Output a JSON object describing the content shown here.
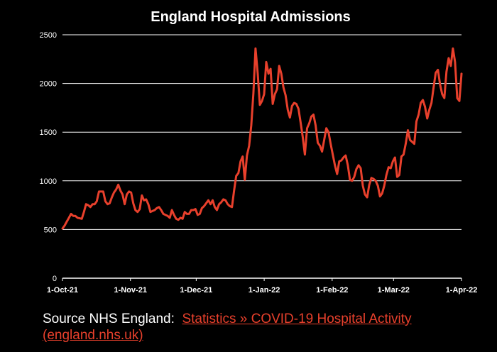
{
  "chart_data": {
    "type": "line",
    "title": "England Hospital Admissions",
    "xlabel": "",
    "ylabel": "",
    "ylim": [
      0,
      2500
    ],
    "yticks": [
      0,
      500,
      1000,
      1500,
      2000,
      2500
    ],
    "xlim_days": [
      0,
      182
    ],
    "xticks": [
      {
        "day": 0,
        "label": "1-Oct-21"
      },
      {
        "day": 31,
        "label": "1-Nov-21"
      },
      {
        "day": 61,
        "label": "1-Dec-21"
      },
      {
        "day": 92,
        "label": "1-Jan-22"
      },
      {
        "day": 123,
        "label": "1-Feb-22"
      },
      {
        "day": 151,
        "label": "1-Mar-22"
      },
      {
        "day": 182,
        "label": "1-Apr-22"
      }
    ],
    "grid": true,
    "colors": {
      "line": "#e8402c",
      "grid": "#ffffff",
      "text": "#ffffff",
      "background": "#000000"
    },
    "series": [
      {
        "name": "England Hospital Admissions",
        "x_start": "1-Oct-21",
        "values": [
          510,
          540,
          580,
          620,
          660,
          640,
          640,
          620,
          615,
          610,
          680,
          760,
          750,
          730,
          760,
          760,
          790,
          890,
          890,
          890,
          790,
          760,
          770,
          830,
          880,
          910,
          960,
          900,
          860,
          760,
          860,
          890,
          880,
          770,
          700,
          680,
          710,
          850,
          800,
          810,
          760,
          680,
          690,
          700,
          720,
          730,
          700,
          660,
          650,
          640,
          620,
          700,
          650,
          610,
          600,
          620,
          610,
          680,
          660,
          660,
          700,
          700,
          710,
          650,
          660,
          720,
          740,
          770,
          800,
          760,
          800,
          730,
          700,
          760,
          780,
          810,
          800,
          760,
          740,
          730,
          900,
          1050,
          1080,
          1200,
          1250,
          1010,
          1260,
          1360,
          1570,
          1900,
          2360,
          2100,
          1780,
          1820,
          1890,
          2220,
          2100,
          2150,
          1790,
          1890,
          1940,
          2180,
          2100,
          1960,
          1880,
          1730,
          1650,
          1770,
          1800,
          1790,
          1740,
          1600,
          1450,
          1270,
          1540,
          1590,
          1660,
          1680,
          1570,
          1390,
          1360,
          1300,
          1420,
          1540,
          1500,
          1380,
          1270,
          1160,
          1070,
          1200,
          1210,
          1240,
          1260,
          1160,
          1010,
          1000,
          1040,
          1120,
          1160,
          1130,
          950,
          860,
          830,
          960,
          1030,
          1020,
          1000,
          950,
          840,
          870,
          950,
          1060,
          1140,
          1130,
          1200,
          1240,
          1040,
          1060,
          1250,
          1270,
          1380,
          1520,
          1420,
          1400,
          1380,
          1610,
          1680,
          1800,
          1830,
          1760,
          1640,
          1730,
          1800,
          1960,
          2110,
          2140,
          1990,
          1890,
          1850,
          2120,
          2260,
          2180,
          2360,
          2220,
          1850,
          1820,
          2100
        ]
      }
    ]
  },
  "source": {
    "prefix": "Source NHS England:",
    "link_text": "Statistics » COVID-19 Hospital Activity",
    "link_text_2": "(england.nhs.uk)"
  }
}
